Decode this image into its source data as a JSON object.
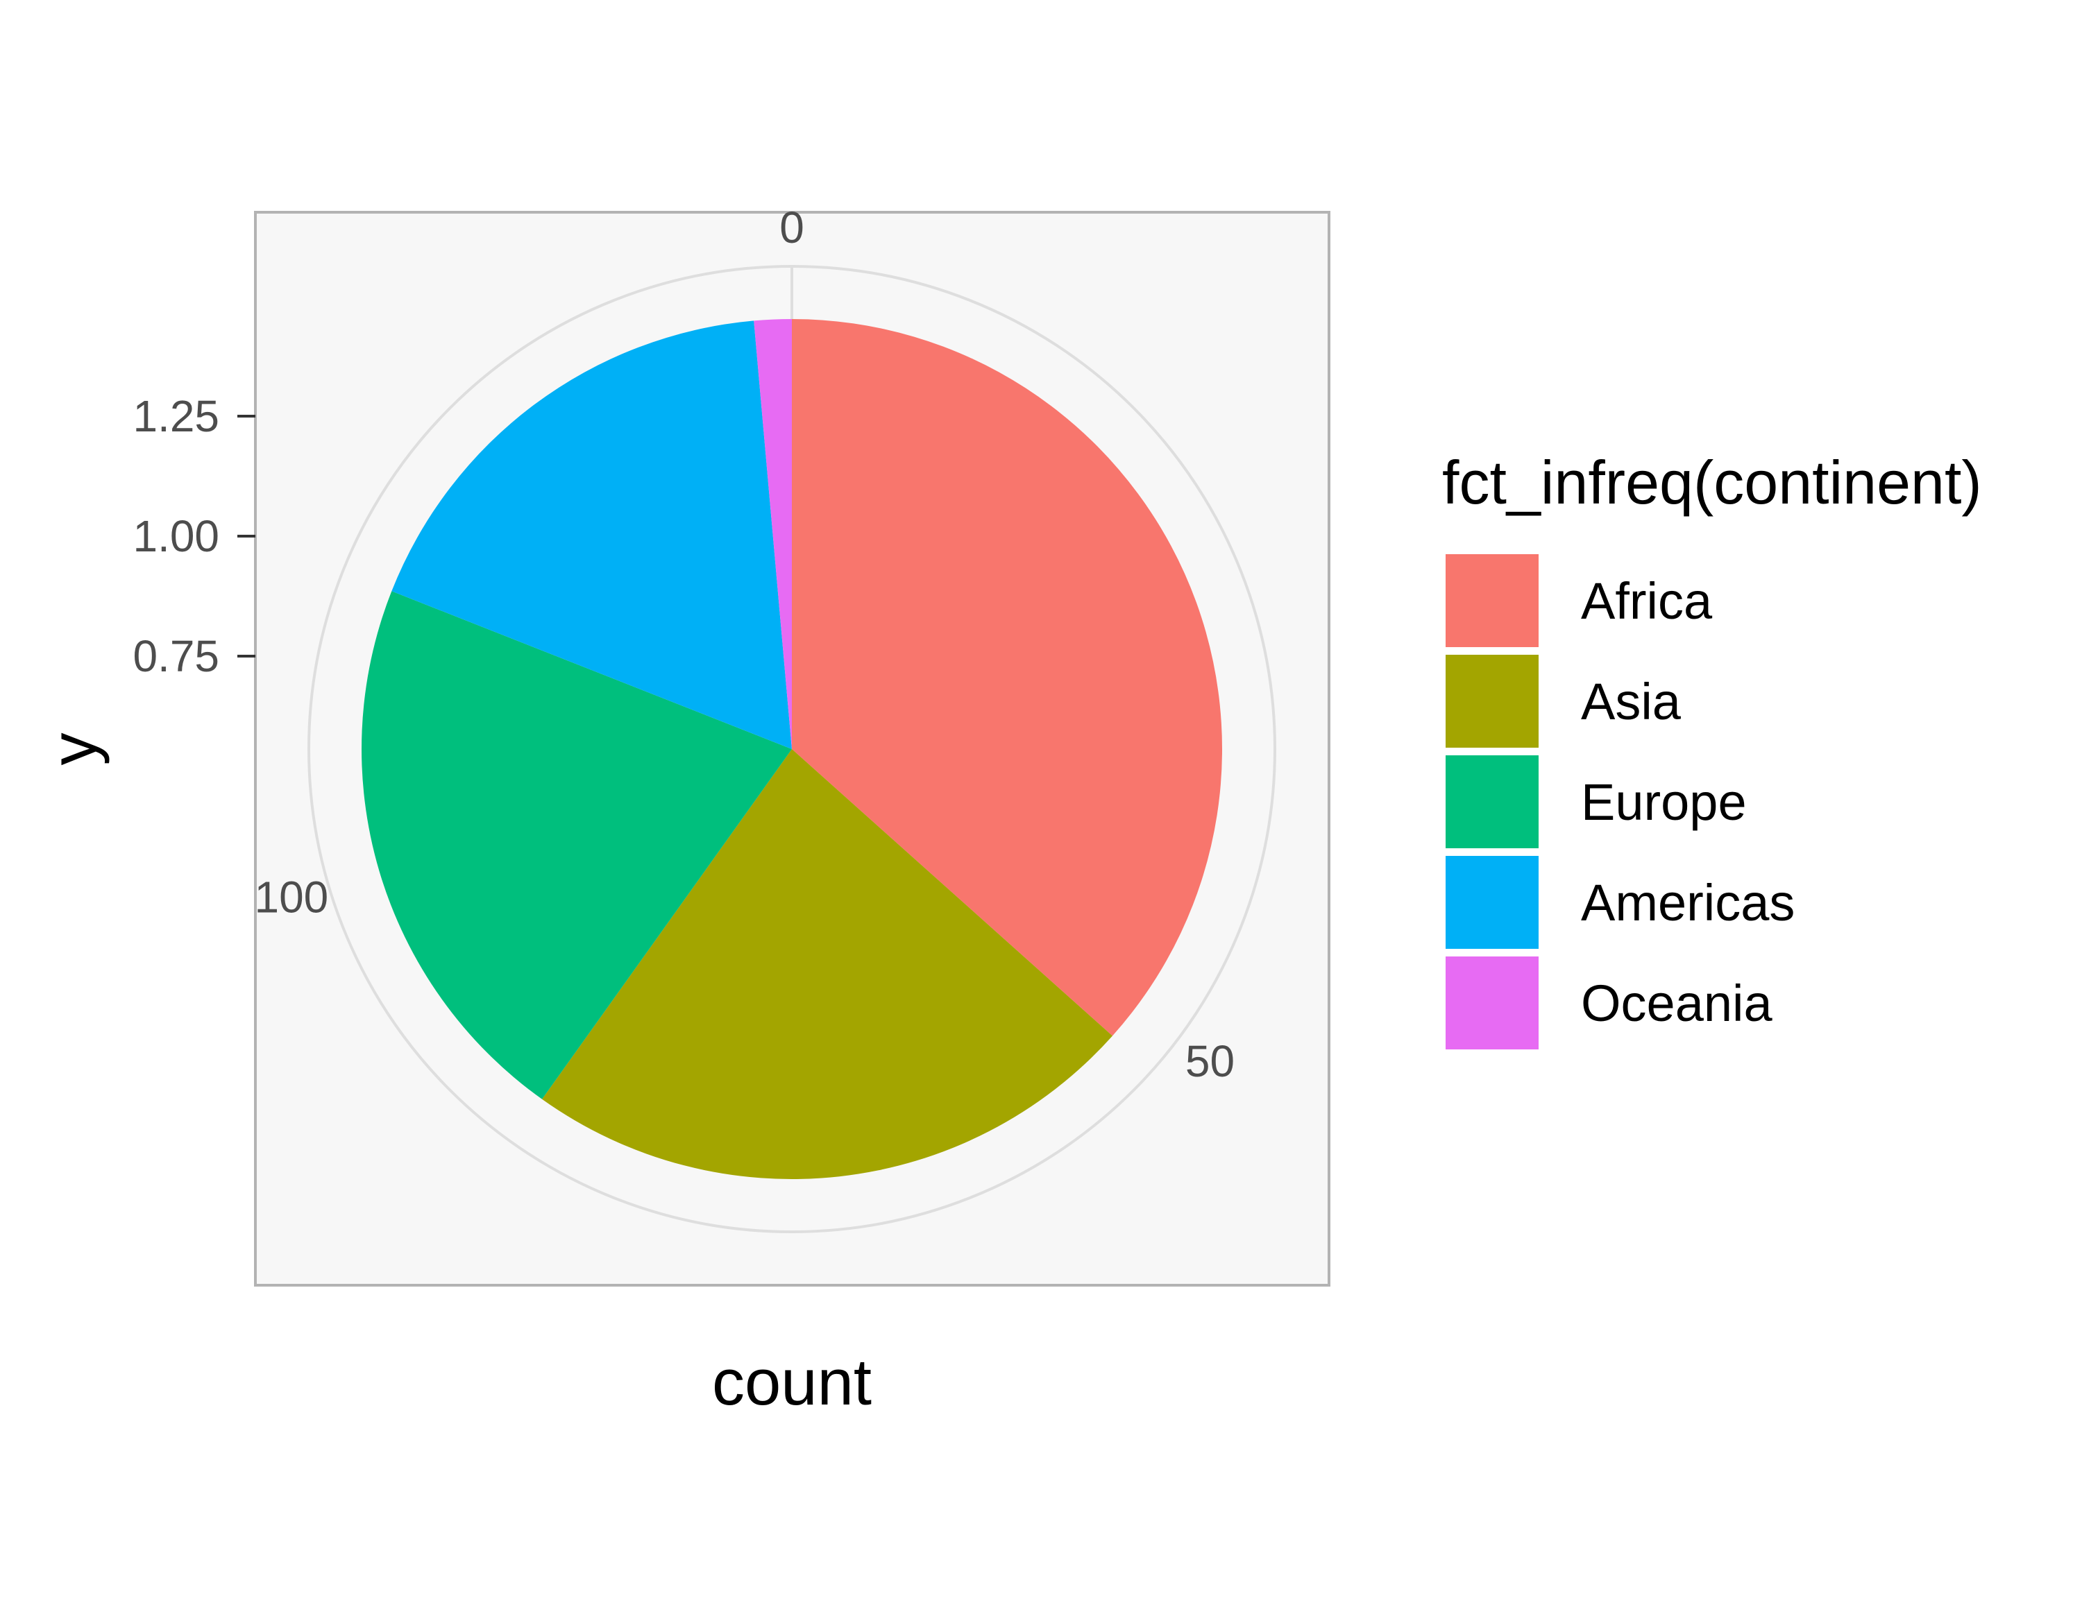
{
  "chart_data": {
    "type": "pie",
    "categories": [
      "Africa",
      "Asia",
      "Europe",
      "Americas",
      "Oceania"
    ],
    "values": [
      52,
      33,
      30,
      25,
      2
    ],
    "colors": [
      "#F8766D",
      "#A3A500",
      "#00BF7D",
      "#00B0F6",
      "#E76BF3"
    ],
    "xlabel": "count",
    "ylabel": "y",
    "legend_title": "fct_infreq(continent)",
    "legend_position": "right",
    "theta_ticks": [
      {
        "value": 0,
        "label": "0"
      },
      {
        "value": 50,
        "label": "50"
      },
      {
        "value": 100,
        "label": "100"
      }
    ],
    "radial_ticks": [
      {
        "value": 0.75,
        "label": "0.75"
      },
      {
        "value": 1.0,
        "label": "1.00"
      },
      {
        "value": 1.25,
        "label": "1.25"
      }
    ],
    "grid": true
  }
}
